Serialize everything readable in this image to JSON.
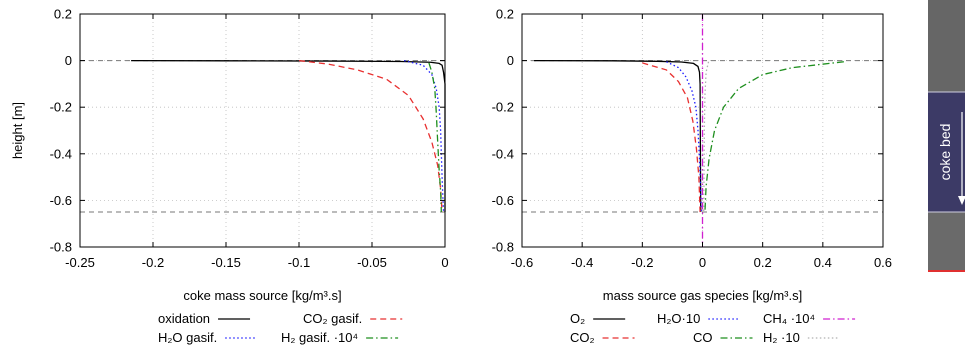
{
  "chart_data": [
    {
      "type": "line",
      "xlabel": "coke mass source  [kg/m³.s]",
      "ylabel": "height  [m]",
      "xlim": [
        -0.25,
        0
      ],
      "ylim": [
        -0.8,
        0.2
      ],
      "xticks": [
        "-0.25",
        "-0.2",
        "-0.15",
        "-0.1",
        "-0.05",
        "0"
      ],
      "yticks": [
        "0.2",
        "0",
        "-0.2",
        "-0.4",
        "-0.6",
        "-0.8"
      ],
      "grid": true,
      "reference_lines_y": [
        0,
        -0.65
      ],
      "legend_position": "below",
      "series": [
        {
          "name": "oxidation",
          "color": "#000000",
          "style": "solid",
          "points": [
            [
              -0.215,
              0
            ],
            [
              -0.15,
              -0.001
            ],
            [
              -0.08,
              -0.002
            ],
            [
              -0.03,
              -0.004
            ],
            [
              -0.01,
              -0.007
            ],
            [
              -0.004,
              -0.012
            ],
            [
              -0.002,
              -0.02
            ],
            [
              -0.001,
              -0.05
            ],
            [
              0,
              -0.1
            ],
            [
              0,
              -0.65
            ]
          ]
        },
        {
          "name": "H₂O gasif.",
          "color": "#1a1aff",
          "style": "dotted",
          "points": [
            [
              -0.028,
              0
            ],
            [
              -0.015,
              -0.02
            ],
            [
              -0.009,
              -0.06
            ],
            [
              -0.006,
              -0.12
            ],
            [
              -0.004,
              -0.2
            ],
            [
              -0.003,
              -0.3
            ],
            [
              -0.0025,
              -0.4
            ],
            [
              -0.002,
              -0.5
            ],
            [
              -0.0015,
              -0.58
            ],
            [
              -0.001,
              -0.65
            ]
          ]
        },
        {
          "name": "CO₂ gasif.",
          "color": "#e83030",
          "style": "dashed",
          "points": [
            [
              -0.1,
              0
            ],
            [
              -0.08,
              -0.015
            ],
            [
              -0.06,
              -0.04
            ],
            [
              -0.04,
              -0.08
            ],
            [
              -0.025,
              -0.15
            ],
            [
              -0.015,
              -0.25
            ],
            [
              -0.009,
              -0.35
            ],
            [
              -0.005,
              -0.45
            ],
            [
              -0.003,
              -0.55
            ],
            [
              -0.002,
              -0.65
            ]
          ]
        },
        {
          "name": "H₂ gasif. ·10⁴",
          "color": "#1f8f1f",
          "style": "dashdot",
          "points": [
            [
              -0.011,
              -0.01
            ],
            [
              -0.009,
              -0.05
            ],
            [
              -0.007,
              -0.12
            ],
            [
              -0.006,
              -0.22
            ],
            [
              -0.005,
              -0.35
            ],
            [
              -0.004,
              -0.47
            ],
            [
              -0.003,
              -0.56
            ],
            [
              -0.0025,
              -0.65
            ]
          ]
        }
      ]
    },
    {
      "type": "line",
      "xlabel": "mass source gas species  [kg/m³.s]",
      "ylabel": "",
      "xlim": [
        -0.6,
        0.6
      ],
      "ylim": [
        -0.8,
        0.2
      ],
      "xticks": [
        "-0.6",
        "-0.4",
        "-0.2",
        "0",
        "0.2",
        "0.4",
        "0.6"
      ],
      "yticks": [
        "0.2",
        "0",
        "-0.2",
        "-0.4",
        "-0.6",
        "-0.8"
      ],
      "grid": true,
      "reference_lines_y": [
        0,
        -0.65
      ],
      "legend_position": "below",
      "series": [
        {
          "name": "O₂",
          "color": "#000000",
          "style": "solid",
          "points": [
            [
              -0.56,
              0
            ],
            [
              -0.3,
              -0.001
            ],
            [
              -0.15,
              -0.003
            ],
            [
              -0.07,
              -0.006
            ],
            [
              -0.03,
              -0.012
            ],
            [
              -0.015,
              -0.025
            ],
            [
              -0.01,
              -0.05
            ],
            [
              -0.008,
              -0.1
            ],
            [
              -0.006,
              -0.65
            ]
          ]
        },
        {
          "name": "H₂O·10",
          "color": "#1a1aff",
          "style": "dotted",
          "points": [
            [
              -0.12,
              -0.005
            ],
            [
              -0.08,
              -0.03
            ],
            [
              -0.055,
              -0.07
            ],
            [
              -0.035,
              -0.13
            ],
            [
              -0.022,
              -0.2
            ],
            [
              -0.015,
              -0.3
            ],
            [
              -0.01,
              -0.42
            ],
            [
              -0.006,
              -0.55
            ],
            [
              -0.004,
              -0.65
            ]
          ]
        },
        {
          "name": "CH₄ ·10⁴",
          "color": "#d020d0",
          "style": "dashdot",
          "points": [
            [
              0,
              0.2
            ],
            [
              0,
              -0.8
            ]
          ]
        },
        {
          "name": "CO₂",
          "color": "#e83030",
          "style": "dashed",
          "points": [
            [
              -0.2,
              -0.01
            ],
            [
              -0.12,
              -0.04
            ],
            [
              -0.08,
              -0.09
            ],
            [
              -0.05,
              -0.16
            ],
            [
              -0.032,
              -0.26
            ],
            [
              -0.02,
              -0.38
            ],
            [
              -0.012,
              -0.5
            ],
            [
              -0.008,
              -0.65
            ]
          ]
        },
        {
          "name": "CO",
          "color": "#1f8f1f",
          "style": "dashdot",
          "points": [
            [
              0.47,
              -0.005
            ],
            [
              0.3,
              -0.03
            ],
            [
              0.2,
              -0.06
            ],
            [
              0.12,
              -0.12
            ],
            [
              0.07,
              -0.2
            ],
            [
              0.04,
              -0.3
            ],
            [
              0.022,
              -0.42
            ],
            [
              0.012,
              -0.54
            ],
            [
              0.008,
              -0.65
            ]
          ]
        },
        {
          "name": "H₂ ·10",
          "color": "#b0b0b0",
          "style": "dotted",
          "points": [
            [
              0.02,
              -0.005
            ],
            [
              0.012,
              -0.05
            ],
            [
              0.008,
              -0.15
            ],
            [
              0.006,
              -0.3
            ],
            [
              0.005,
              -0.5
            ],
            [
              0.004,
              -0.65
            ]
          ]
        }
      ]
    }
  ],
  "side_panel": {
    "label": "coke bed",
    "colors": {
      "upper": "#666666",
      "bed": "#3c3a66",
      "lower": "#6a6a6a",
      "accent": "#e03030"
    }
  }
}
